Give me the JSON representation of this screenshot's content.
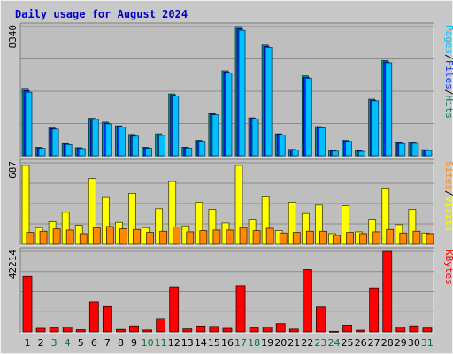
{
  "title": "Daily usage for August 2024",
  "colors": {
    "background": "#c8c8c8",
    "plot_background": "#bebebe",
    "grid": "#8c8c8c",
    "title": "#0000cc",
    "hits": "#00ccff",
    "hits_dark": "#009999",
    "files": "#0033ff",
    "files_dark": "#000099",
    "pages": "#00c0ff",
    "visits": "#ffff00",
    "sites": "#ff8800",
    "kbytes": "#ff0000",
    "weekend_label": "#007733",
    "weekday_label": "#000000"
  },
  "chart_data": [
    {
      "type": "bar",
      "panel": "top",
      "ymax_label": "8340",
      "ymax": 8340,
      "right_label_parts": [
        "Pages",
        "/",
        "Files",
        "/",
        "Hits"
      ],
      "categories": [
        "1",
        "2",
        "3",
        "4",
        "5",
        "6",
        "7",
        "8",
        "9",
        "10",
        "11",
        "12",
        "13",
        "14",
        "15",
        "16",
        "17",
        "18",
        "19",
        "20",
        "21",
        "22",
        "23",
        "24",
        "25",
        "26",
        "27",
        "28",
        "29",
        "30",
        "31"
      ],
      "weekend": [
        false,
        false,
        true,
        true,
        false,
        false,
        false,
        false,
        false,
        true,
        true,
        false,
        false,
        false,
        false,
        false,
        true,
        true,
        false,
        false,
        false,
        false,
        true,
        true,
        false,
        false,
        false,
        false,
        false,
        false,
        true
      ],
      "series": [
        {
          "name": "Hits",
          "values": [
            4350,
            540,
            1830,
            780,
            520,
            2420,
            2170,
            1930,
            1380,
            540,
            1420,
            3990,
            550,
            1000,
            2720,
            5480,
            8340,
            2450,
            7150,
            1420,
            410,
            5160,
            1880,
            360,
            990,
            330,
            3650,
            6150,
            850,
            860,
            390
          ]
        },
        {
          "name": "Files",
          "values": [
            4200,
            500,
            1750,
            740,
            480,
            2380,
            2100,
            1880,
            1300,
            500,
            1350,
            3900,
            510,
            950,
            2680,
            5400,
            8200,
            2400,
            7050,
            1380,
            380,
            5050,
            1820,
            320,
            950,
            300,
            3580,
            6050,
            800,
            820,
            360
          ]
        },
        {
          "name": "Pages",
          "values": [
            4100,
            480,
            1720,
            720,
            460,
            2350,
            2060,
            1850,
            1270,
            480,
            1320,
            3850,
            490,
            930,
            2650,
            5350,
            8100,
            2380,
            7000,
            1350,
            360,
            5000,
            1800,
            300,
            930,
            280,
            3550,
            6000,
            780,
            800,
            340
          ]
        }
      ]
    },
    {
      "type": "bar",
      "panel": "middle",
      "ymax_label": "687",
      "ymax": 687,
      "right_label_parts": [
        "Sites",
        "/",
        "Visits"
      ],
      "categories": [
        "1",
        "2",
        "3",
        "4",
        "5",
        "6",
        "7",
        "8",
        "9",
        "10",
        "11",
        "12",
        "13",
        "14",
        "15",
        "16",
        "17",
        "18",
        "19",
        "20",
        "21",
        "22",
        "23",
        "24",
        "25",
        "26",
        "27",
        "28",
        "29",
        "30",
        "31"
      ],
      "series": [
        {
          "name": "Visits",
          "values": [
            665,
            140,
            190,
            270,
            160,
            555,
            395,
            185,
            430,
            140,
            300,
            530,
            155,
            355,
            295,
            180,
            665,
            205,
            400,
            115,
            355,
            260,
            330,
            90,
            325,
            105,
            205,
            475,
            165,
            295,
            95
          ]
        },
        {
          "name": "Sites",
          "values": [
            100,
            110,
            130,
            120,
            90,
            140,
            150,
            130,
            125,
            100,
            110,
            145,
            105,
            115,
            120,
            120,
            140,
            115,
            135,
            95,
            100,
            110,
            110,
            75,
            100,
            90,
            105,
            125,
            95,
            110,
            90
          ]
        }
      ]
    },
    {
      "type": "bar",
      "panel": "bottom",
      "ymax_label": "42214",
      "ymax": 42214,
      "right_label_parts": [
        "KBytes"
      ],
      "categories": [
        "1",
        "2",
        "3",
        "4",
        "5",
        "6",
        "7",
        "8",
        "9",
        "10",
        "11",
        "12",
        "13",
        "14",
        "15",
        "16",
        "17",
        "18",
        "19",
        "20",
        "21",
        "22",
        "23",
        "24",
        "25",
        "26",
        "27",
        "28",
        "29",
        "30",
        "31"
      ],
      "series": [
        {
          "name": "KBytes",
          "values": [
            29100,
            1850,
            2050,
            2550,
            1150,
            15800,
            13300,
            1300,
            3150,
            1000,
            7000,
            23600,
            1550,
            3100,
            2850,
            1850,
            24200,
            2050,
            2500,
            4300,
            1450,
            32700,
            13100,
            300,
            3500,
            900,
            23100,
            42214,
            2550,
            3150,
            2000
          ]
        }
      ]
    }
  ]
}
